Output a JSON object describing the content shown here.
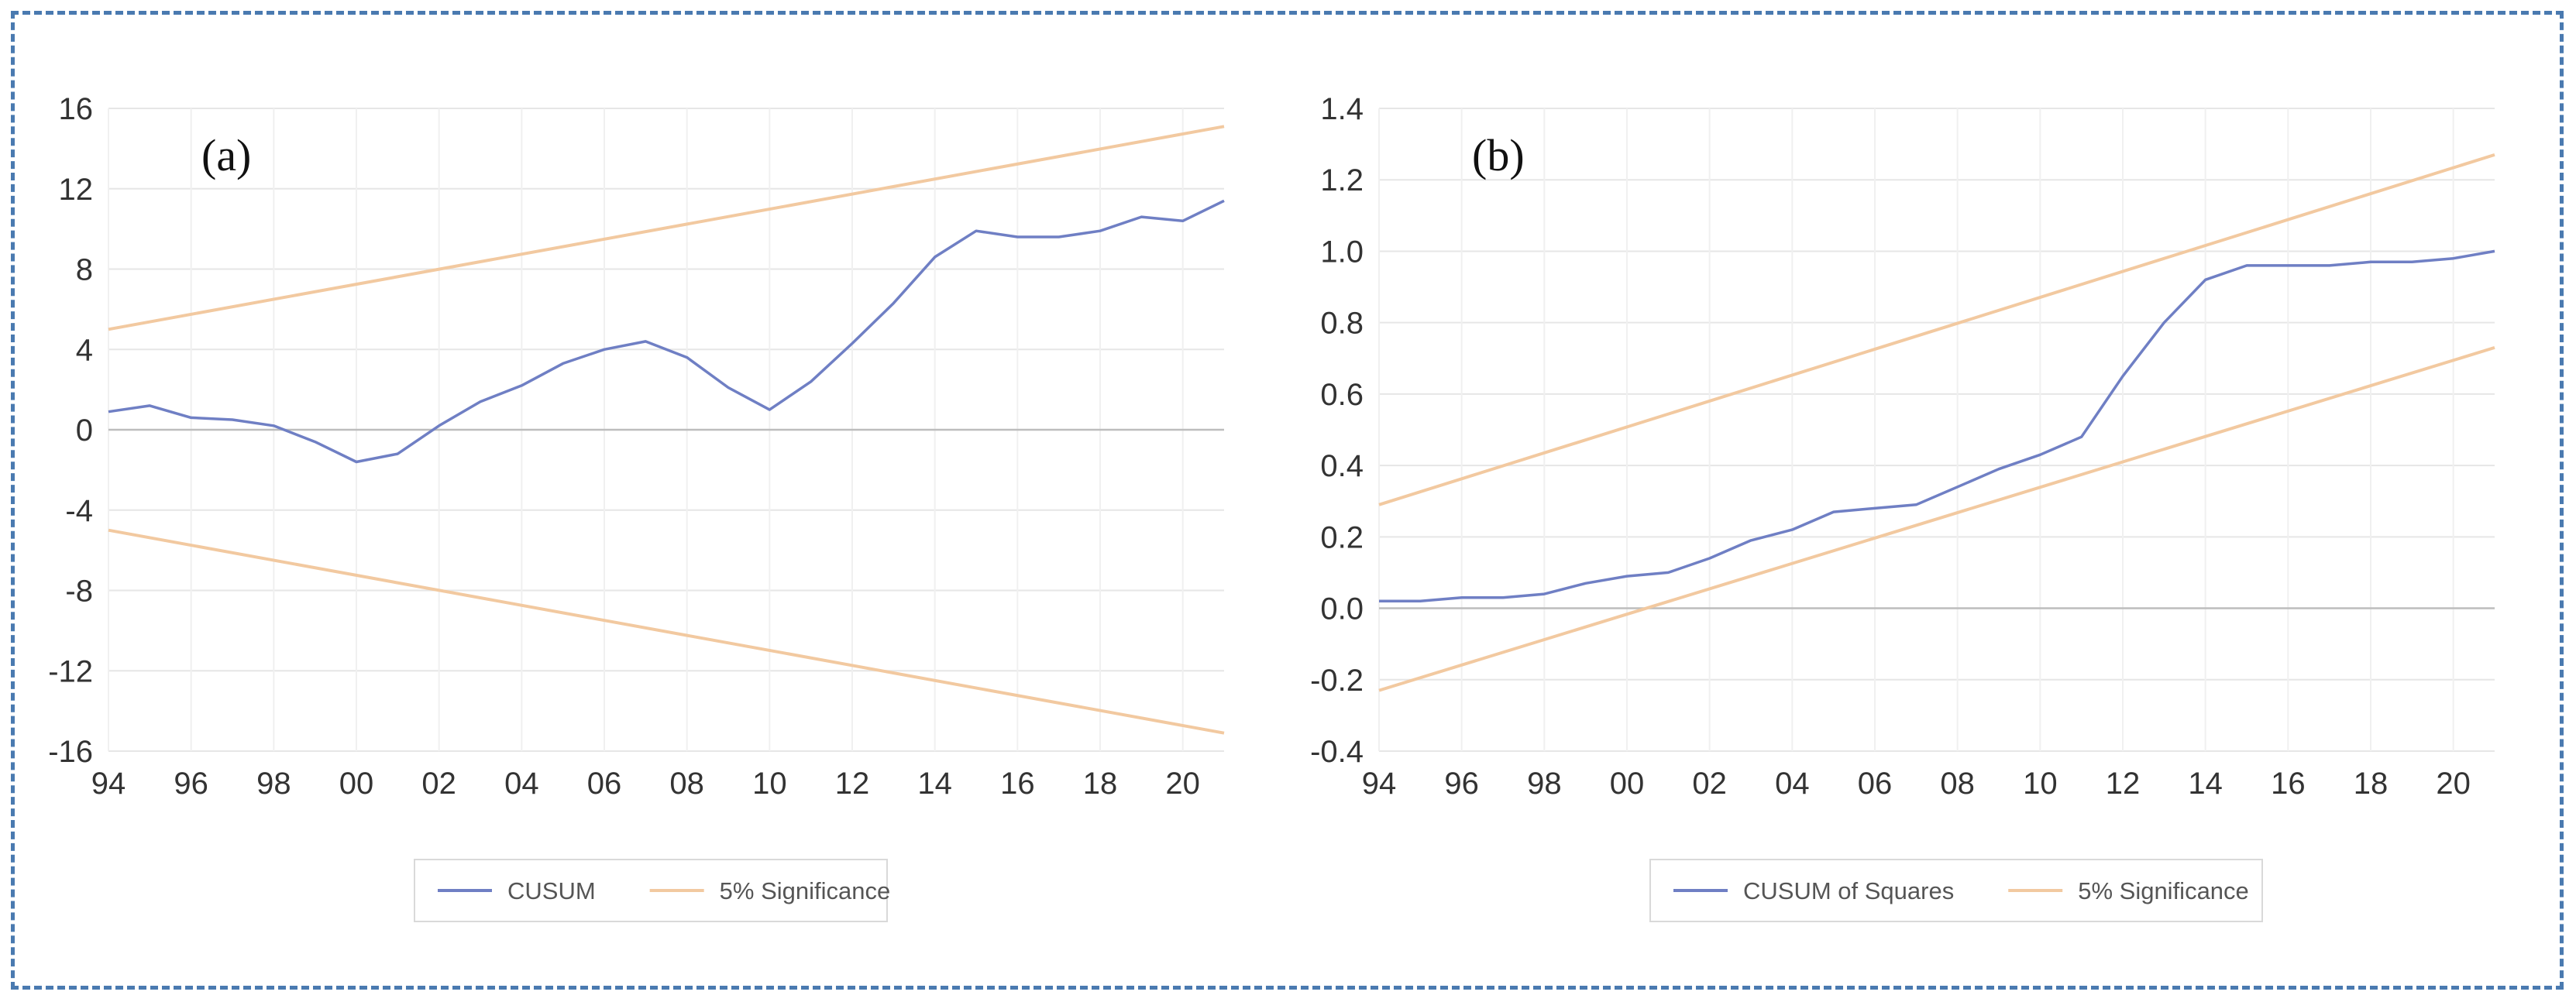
{
  "chart_data": [
    {
      "type": "line",
      "panel_label": "(a)",
      "x_tick_labels": [
        "94",
        "96",
        "98",
        "00",
        "02",
        "04",
        "06",
        "08",
        "10",
        "12",
        "14",
        "16",
        "18",
        "20"
      ],
      "x_tick_years": [
        1994,
        1996,
        1998,
        2000,
        2002,
        2004,
        2006,
        2008,
        2010,
        2012,
        2014,
        2016,
        2018,
        2020
      ],
      "xlim": [
        1994,
        2021
      ],
      "ylim": [
        -16,
        16
      ],
      "y_ticks": [
        16,
        12,
        8,
        4,
        0,
        -4,
        -8,
        -12,
        -16
      ],
      "grid": true,
      "legend_position": "bottom",
      "legend": [
        "CUSUM",
        "5% Significance"
      ],
      "series": [
        {
          "name": "CUSUM",
          "color": "#6f7fc4",
          "x": [
            1994,
            1995,
            1996,
            1997,
            1998,
            1999,
            2000,
            2001,
            2002,
            2003,
            2004,
            2005,
            2006,
            2007,
            2008,
            2009,
            2010,
            2011,
            2012,
            2013,
            2014,
            2015,
            2016,
            2017,
            2018,
            2019,
            2020,
            2021
          ],
          "y": [
            0.9,
            1.2,
            0.6,
            0.5,
            0.2,
            -0.6,
            -1.6,
            -1.2,
            0.2,
            1.4,
            2.2,
            3.3,
            4.0,
            4.4,
            3.6,
            2.1,
            1.0,
            2.4,
            4.3,
            6.3,
            8.6,
            9.9,
            9.6,
            9.6,
            9.9,
            10.6,
            10.4,
            11.4
          ]
        },
        {
          "name": "5% Significance",
          "color": "#f2c9a0",
          "x": [
            1994,
            2021
          ],
          "y": [
            5.0,
            15.1
          ]
        },
        {
          "name": "5% Significance",
          "color": "#f2c9a0",
          "x": [
            1994,
            2021
          ],
          "y": [
            -5.0,
            -15.1
          ]
        }
      ]
    },
    {
      "type": "line",
      "panel_label": "(b)",
      "x_tick_labels": [
        "94",
        "96",
        "98",
        "00",
        "02",
        "04",
        "06",
        "08",
        "10",
        "12",
        "14",
        "16",
        "18",
        "20"
      ],
      "x_tick_years": [
        1994,
        1996,
        1998,
        2000,
        2002,
        2004,
        2006,
        2008,
        2010,
        2012,
        2014,
        2016,
        2018,
        2020
      ],
      "xlim": [
        1994,
        2021
      ],
      "ylim": [
        -0.4,
        1.4
      ],
      "y_ticks": [
        1.4,
        1.2,
        1.0,
        0.8,
        0.6,
        0.4,
        0.2,
        0.0,
        -0.2,
        -0.4
      ],
      "y_tick_labels": [
        "1.4",
        "1.2",
        "1.0",
        "0.8",
        "0.6",
        "0.4",
        "0.2",
        "0.0",
        "-0.2",
        "-0.4"
      ],
      "grid": true,
      "legend_position": "bottom",
      "legend": [
        "CUSUM of Squares",
        "5% Significance"
      ],
      "series": [
        {
          "name": "CUSUM of Squares",
          "color": "#6f7fc4",
          "x": [
            1994,
            1995,
            1996,
            1997,
            1998,
            1999,
            2000,
            2001,
            2002,
            2003,
            2004,
            2005,
            2006,
            2007,
            2008,
            2009,
            2010,
            2011,
            2012,
            2013,
            2014,
            2015,
            2016,
            2017,
            2018,
            2019,
            2020,
            2021
          ],
          "y": [
            0.02,
            0.02,
            0.03,
            0.03,
            0.04,
            0.07,
            0.09,
            0.1,
            0.14,
            0.19,
            0.22,
            0.27,
            0.28,
            0.29,
            0.34,
            0.39,
            0.43,
            0.48,
            0.65,
            0.8,
            0.92,
            0.96,
            0.96,
            0.96,
            0.97,
            0.97,
            0.98,
            1.0
          ]
        },
        {
          "name": "5% Significance",
          "color": "#f2c9a0",
          "x": [
            1994,
            2021
          ],
          "y": [
            0.29,
            1.27
          ]
        },
        {
          "name": "5% Significance",
          "color": "#f2c9a0",
          "x": [
            1994,
            2021
          ],
          "y": [
            -0.23,
            0.73
          ]
        }
      ]
    }
  ]
}
